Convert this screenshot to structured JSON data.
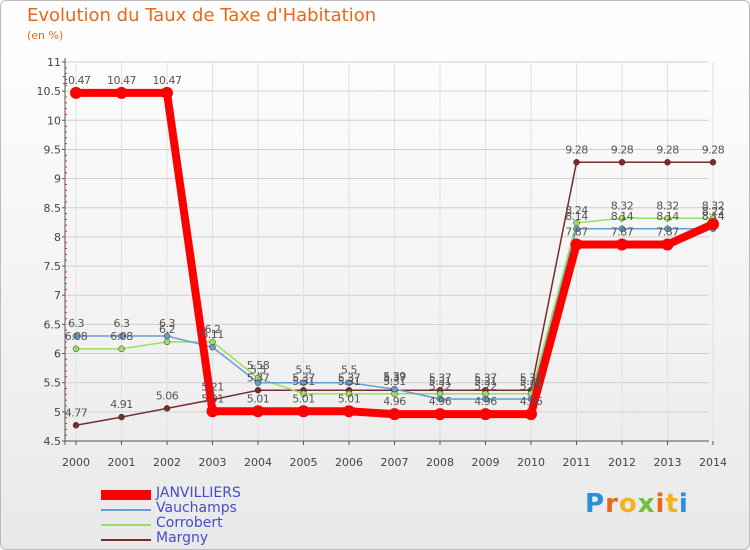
{
  "chart_data": {
    "type": "line",
    "title": "Evolution du Taux de Taxe d'Habitation",
    "subtitle": "(en %)",
    "xlabel": "",
    "ylabel": "(en %)",
    "ylim": [
      4.5,
      11
    ],
    "y_ticks": [
      "4.5",
      "5",
      "5.5",
      "6",
      "6.5",
      "7",
      "7.5",
      "8",
      "8.5",
      "9",
      "9.5",
      "10",
      "10.5",
      "11"
    ],
    "x": [
      "2000",
      "2001",
      "2002",
      "2003",
      "2004",
      "2005",
      "2006",
      "2007",
      "2008",
      "2009",
      "2010",
      "2011",
      "2012",
      "2013",
      "2014"
    ],
    "grid": true,
    "legend_position": "bottom-left",
    "series": [
      {
        "name": "JANVILLIERS",
        "color": "#ff0000",
        "values": [
          10.47,
          10.47,
          10.47,
          5.01,
          5.01,
          5.01,
          5.01,
          4.96,
          4.96,
          4.96,
          4.96,
          7.87,
          7.87,
          7.87,
          8.22
        ],
        "labels": [
          "10.47",
          "10.47",
          "10.47",
          "5.01",
          "5.01",
          "5.01",
          "5.01",
          "4.96",
          "4.96",
          "4.96",
          "4.96",
          "7.87",
          "7.87",
          "7.87",
          "8.22"
        ]
      },
      {
        "name": "Vauchamps",
        "color": "#6a9ccd",
        "values": [
          6.3,
          6.3,
          6.3,
          6.11,
          5.5,
          5.5,
          5.5,
          5.39,
          5.22,
          5.22,
          5.22,
          8.14,
          8.14,
          8.14,
          8.14
        ],
        "labels": [
          "6.3",
          "6.3",
          "6.3",
          "6.11",
          "5.5",
          "5.5",
          "5.5",
          "5.39",
          "5.22",
          "5.22",
          "5.22",
          "8.14",
          "8.14",
          "8.14",
          "8.14"
        ]
      },
      {
        "name": "Corrobert",
        "color": "#99e060",
        "values": [
          6.08,
          6.08,
          6.2,
          6.2,
          5.58,
          5.31,
          5.31,
          5.31,
          5.31,
          5.31,
          5.31,
          8.24,
          8.32,
          8.32,
          8.32
        ],
        "labels": [
          "6.08",
          "6.08",
          "6.2",
          "6.2",
          "5.58",
          "5.31",
          "5.31",
          "5.31",
          "5.31",
          "5.31",
          "5.31",
          "8.24",
          "8.32",
          "8.32",
          "8.32"
        ]
      },
      {
        "name": "Margny",
        "color": "#7a2b2b",
        "values": [
          4.77,
          4.91,
          5.06,
          5.21,
          5.37,
          5.37,
          5.37,
          5.37,
          5.37,
          5.37,
          5.37,
          9.28,
          9.28,
          9.28,
          9.28
        ],
        "labels": [
          "4.77",
          "4.91",
          "5.06",
          "5.21",
          "5.37",
          "5.37",
          "5.37",
          "5.37",
          "5.37",
          "5.37",
          "5.37",
          "9.28",
          "9.28",
          "9.28",
          "9.28"
        ]
      }
    ]
  },
  "logo": {
    "letters": [
      "P",
      "r",
      "o",
      "x",
      "i",
      "t",
      "i"
    ],
    "colors": [
      "#2b8fd8",
      "#e8681a",
      "#f2b321",
      "#6fbf3a",
      "#e8681a",
      "#f2b321",
      "#2b8fd8"
    ]
  }
}
